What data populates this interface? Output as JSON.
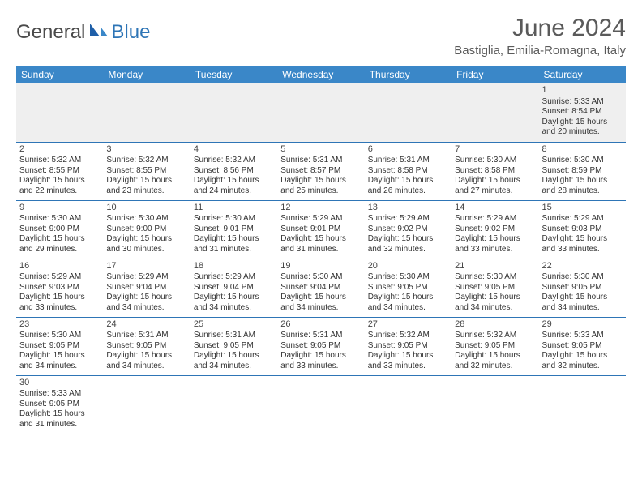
{
  "logo": {
    "part1": "General",
    "part2": "Blue"
  },
  "title": "June 2024",
  "location": "Bastiglia, Emilia-Romagna, Italy",
  "colors": {
    "header_bg": "#3a87c8",
    "header_text": "#ffffff",
    "divider": "#2e75b6",
    "firstweek_bg": "#efefef",
    "logo_accent": "#2e75b6",
    "title_color": "#5a5a5a"
  },
  "font": {
    "title_size": 30,
    "location_size": 15,
    "dayheader_size": 12,
    "cell_size": 10
  },
  "day_headers": [
    "Sunday",
    "Monday",
    "Tuesday",
    "Wednesday",
    "Thursday",
    "Friday",
    "Saturday"
  ],
  "weeks": [
    [
      null,
      null,
      null,
      null,
      null,
      null,
      {
        "n": "1",
        "sunrise": "Sunrise: 5:33 AM",
        "sunset": "Sunset: 8:54 PM",
        "dl1": "Daylight: 15 hours",
        "dl2": "and 20 minutes."
      }
    ],
    [
      {
        "n": "2",
        "sunrise": "Sunrise: 5:32 AM",
        "sunset": "Sunset: 8:55 PM",
        "dl1": "Daylight: 15 hours",
        "dl2": "and 22 minutes."
      },
      {
        "n": "3",
        "sunrise": "Sunrise: 5:32 AM",
        "sunset": "Sunset: 8:55 PM",
        "dl1": "Daylight: 15 hours",
        "dl2": "and 23 minutes."
      },
      {
        "n": "4",
        "sunrise": "Sunrise: 5:32 AM",
        "sunset": "Sunset: 8:56 PM",
        "dl1": "Daylight: 15 hours",
        "dl2": "and 24 minutes."
      },
      {
        "n": "5",
        "sunrise": "Sunrise: 5:31 AM",
        "sunset": "Sunset: 8:57 PM",
        "dl1": "Daylight: 15 hours",
        "dl2": "and 25 minutes."
      },
      {
        "n": "6",
        "sunrise": "Sunrise: 5:31 AM",
        "sunset": "Sunset: 8:58 PM",
        "dl1": "Daylight: 15 hours",
        "dl2": "and 26 minutes."
      },
      {
        "n": "7",
        "sunrise": "Sunrise: 5:30 AM",
        "sunset": "Sunset: 8:58 PM",
        "dl1": "Daylight: 15 hours",
        "dl2": "and 27 minutes."
      },
      {
        "n": "8",
        "sunrise": "Sunrise: 5:30 AM",
        "sunset": "Sunset: 8:59 PM",
        "dl1": "Daylight: 15 hours",
        "dl2": "and 28 minutes."
      }
    ],
    [
      {
        "n": "9",
        "sunrise": "Sunrise: 5:30 AM",
        "sunset": "Sunset: 9:00 PM",
        "dl1": "Daylight: 15 hours",
        "dl2": "and 29 minutes."
      },
      {
        "n": "10",
        "sunrise": "Sunrise: 5:30 AM",
        "sunset": "Sunset: 9:00 PM",
        "dl1": "Daylight: 15 hours",
        "dl2": "and 30 minutes."
      },
      {
        "n": "11",
        "sunrise": "Sunrise: 5:30 AM",
        "sunset": "Sunset: 9:01 PM",
        "dl1": "Daylight: 15 hours",
        "dl2": "and 31 minutes."
      },
      {
        "n": "12",
        "sunrise": "Sunrise: 5:29 AM",
        "sunset": "Sunset: 9:01 PM",
        "dl1": "Daylight: 15 hours",
        "dl2": "and 31 minutes."
      },
      {
        "n": "13",
        "sunrise": "Sunrise: 5:29 AM",
        "sunset": "Sunset: 9:02 PM",
        "dl1": "Daylight: 15 hours",
        "dl2": "and 32 minutes."
      },
      {
        "n": "14",
        "sunrise": "Sunrise: 5:29 AM",
        "sunset": "Sunset: 9:02 PM",
        "dl1": "Daylight: 15 hours",
        "dl2": "and 33 minutes."
      },
      {
        "n": "15",
        "sunrise": "Sunrise: 5:29 AM",
        "sunset": "Sunset: 9:03 PM",
        "dl1": "Daylight: 15 hours",
        "dl2": "and 33 minutes."
      }
    ],
    [
      {
        "n": "16",
        "sunrise": "Sunrise: 5:29 AM",
        "sunset": "Sunset: 9:03 PM",
        "dl1": "Daylight: 15 hours",
        "dl2": "and 33 minutes."
      },
      {
        "n": "17",
        "sunrise": "Sunrise: 5:29 AM",
        "sunset": "Sunset: 9:04 PM",
        "dl1": "Daylight: 15 hours",
        "dl2": "and 34 minutes."
      },
      {
        "n": "18",
        "sunrise": "Sunrise: 5:29 AM",
        "sunset": "Sunset: 9:04 PM",
        "dl1": "Daylight: 15 hours",
        "dl2": "and 34 minutes."
      },
      {
        "n": "19",
        "sunrise": "Sunrise: 5:30 AM",
        "sunset": "Sunset: 9:04 PM",
        "dl1": "Daylight: 15 hours",
        "dl2": "and 34 minutes."
      },
      {
        "n": "20",
        "sunrise": "Sunrise: 5:30 AM",
        "sunset": "Sunset: 9:05 PM",
        "dl1": "Daylight: 15 hours",
        "dl2": "and 34 minutes."
      },
      {
        "n": "21",
        "sunrise": "Sunrise: 5:30 AM",
        "sunset": "Sunset: 9:05 PM",
        "dl1": "Daylight: 15 hours",
        "dl2": "and 34 minutes."
      },
      {
        "n": "22",
        "sunrise": "Sunrise: 5:30 AM",
        "sunset": "Sunset: 9:05 PM",
        "dl1": "Daylight: 15 hours",
        "dl2": "and 34 minutes."
      }
    ],
    [
      {
        "n": "23",
        "sunrise": "Sunrise: 5:30 AM",
        "sunset": "Sunset: 9:05 PM",
        "dl1": "Daylight: 15 hours",
        "dl2": "and 34 minutes."
      },
      {
        "n": "24",
        "sunrise": "Sunrise: 5:31 AM",
        "sunset": "Sunset: 9:05 PM",
        "dl1": "Daylight: 15 hours",
        "dl2": "and 34 minutes."
      },
      {
        "n": "25",
        "sunrise": "Sunrise: 5:31 AM",
        "sunset": "Sunset: 9:05 PM",
        "dl1": "Daylight: 15 hours",
        "dl2": "and 34 minutes."
      },
      {
        "n": "26",
        "sunrise": "Sunrise: 5:31 AM",
        "sunset": "Sunset: 9:05 PM",
        "dl1": "Daylight: 15 hours",
        "dl2": "and 33 minutes."
      },
      {
        "n": "27",
        "sunrise": "Sunrise: 5:32 AM",
        "sunset": "Sunset: 9:05 PM",
        "dl1": "Daylight: 15 hours",
        "dl2": "and 33 minutes."
      },
      {
        "n": "28",
        "sunrise": "Sunrise: 5:32 AM",
        "sunset": "Sunset: 9:05 PM",
        "dl1": "Daylight: 15 hours",
        "dl2": "and 32 minutes."
      },
      {
        "n": "29",
        "sunrise": "Sunrise: 5:33 AM",
        "sunset": "Sunset: 9:05 PM",
        "dl1": "Daylight: 15 hours",
        "dl2": "and 32 minutes."
      }
    ],
    [
      {
        "n": "30",
        "sunrise": "Sunrise: 5:33 AM",
        "sunset": "Sunset: 9:05 PM",
        "dl1": "Daylight: 15 hours",
        "dl2": "and 31 minutes."
      },
      null,
      null,
      null,
      null,
      null,
      null
    ]
  ]
}
